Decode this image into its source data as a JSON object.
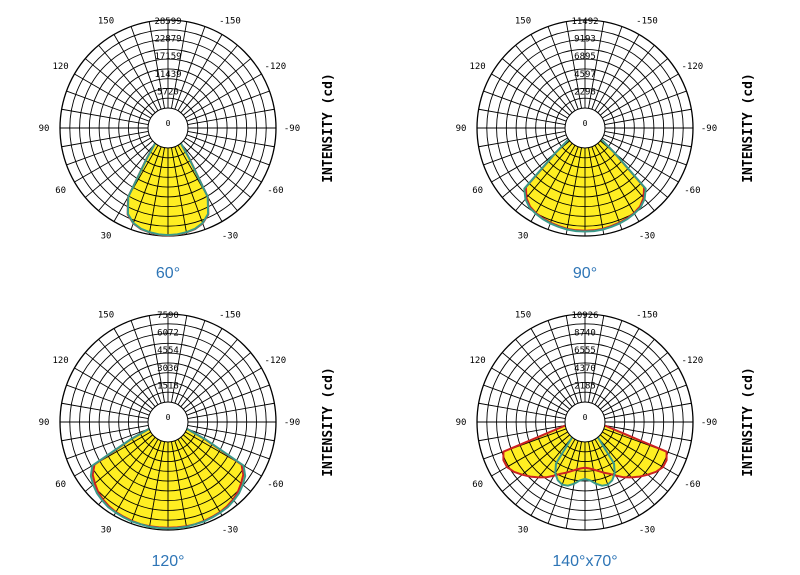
{
  "colors": {
    "fill": "#ffee22",
    "curve_c0": "#cc2222",
    "curve_c90": "#3a9a8a",
    "caption": "#2e75b6"
  },
  "chart_data": [
    {
      "type": "polar",
      "title": "60°",
      "ylabel": "INTENSITY (cd)",
      "center_label": "0",
      "rings": [
        "5720",
        "11439",
        "17159",
        "22879",
        "28599"
      ],
      "r_max": 28599,
      "angle_labels": [
        "-150",
        "150",
        "-120",
        "120",
        "-90",
        "90",
        "-60",
        "60",
        "-30",
        "30"
      ],
      "series": [
        {
          "color": "#cc2222",
          "angles": [
            -40,
            -35,
            -30,
            -25,
            -20,
            -15,
            -10,
            -5,
            0,
            5,
            10,
            15,
            20,
            25,
            30,
            35,
            40
          ],
          "values": [
            0,
            5500,
            19500,
            24500,
            26500,
            27500,
            28000,
            28300,
            28400,
            28300,
            28000,
            27500,
            26500,
            24500,
            19500,
            5500,
            0
          ]
        },
        {
          "color": "#3a9a8a",
          "angles": [
            -40,
            -35,
            -30,
            -25,
            -20,
            -15,
            -10,
            -5,
            0,
            5,
            10,
            15,
            20,
            25,
            30,
            35,
            40
          ],
          "values": [
            0,
            5300,
            19300,
            24300,
            26400,
            27400,
            27900,
            28200,
            28300,
            28200,
            27900,
            27400,
            26400,
            24300,
            19300,
            5300,
            0
          ]
        }
      ]
    },
    {
      "type": "polar",
      "title": "90°",
      "ylabel": "INTENSITY (cd)",
      "center_label": "0",
      "rings": [
        "2298",
        "4597",
        "6895",
        "9193",
        "11492"
      ],
      "r_max": 11492,
      "angle_labels": [
        "-150",
        "150",
        "-120",
        "120",
        "-90",
        "90",
        "-60",
        "60",
        "-30",
        "30"
      ],
      "series": [
        {
          "color": "#cc2222",
          "angles": [
            -55,
            -50,
            -45,
            -40,
            -35,
            -30,
            -25,
            -20,
            -15,
            -10,
            -5,
            0,
            5,
            10,
            15,
            20,
            25,
            30,
            35,
            40,
            45,
            50,
            55
          ],
          "values": [
            0,
            2300,
            8300,
            9300,
            9900,
            10200,
            10400,
            10550,
            10650,
            10750,
            10800,
            10800,
            10800,
            10750,
            10650,
            10550,
            10400,
            10200,
            9900,
            9300,
            8300,
            2300,
            0
          ]
        },
        {
          "color": "#3a9a8a",
          "angles": [
            -55,
            -50,
            -45,
            -40,
            -35,
            -30,
            -25,
            -20,
            -15,
            -10,
            -5,
            0,
            5,
            10,
            15,
            20,
            25,
            30,
            35,
            40,
            45,
            50,
            55
          ],
          "values": [
            0,
            2400,
            8600,
            9500,
            10050,
            10300,
            10500,
            10650,
            10750,
            10850,
            10900,
            10900,
            10900,
            10850,
            10750,
            10650,
            10500,
            10300,
            10050,
            9500,
            8600,
            2400,
            0
          ]
        }
      ]
    },
    {
      "type": "polar",
      "title": "120°",
      "ylabel": "INTENSITY (cd)",
      "center_label": "0",
      "rings": [
        "1518",
        "3036",
        "4554",
        "6072",
        "7590"
      ],
      "r_max": 7590,
      "angle_labels": [
        "-150",
        "150",
        "-120",
        "120",
        "-90",
        "90",
        "-60",
        "60",
        "-30",
        "30"
      ],
      "series": [
        {
          "color": "#cc2222",
          "angles": [
            -70,
            -65,
            -60,
            -55,
            -50,
            -45,
            -40,
            -35,
            -30,
            -25,
            -20,
            -15,
            -10,
            -5,
            0,
            5,
            10,
            15,
            20,
            25,
            30,
            35,
            40,
            45,
            50,
            55,
            60,
            65,
            70
          ],
          "values": [
            0,
            1800,
            5600,
            6200,
            6500,
            6800,
            7000,
            7150,
            7250,
            7300,
            7350,
            7400,
            7400,
            7400,
            7400,
            7400,
            7400,
            7400,
            7350,
            7300,
            7250,
            7150,
            7000,
            6800,
            6500,
            6200,
            5600,
            1800,
            0
          ]
        },
        {
          "color": "#3a9a8a",
          "angles": [
            -70,
            -65,
            -60,
            -55,
            -50,
            -45,
            -40,
            -35,
            -30,
            -25,
            -20,
            -15,
            -10,
            -5,
            0,
            5,
            10,
            15,
            20,
            25,
            30,
            35,
            40,
            45,
            50,
            55,
            60,
            65,
            70
          ],
          "values": [
            0,
            1900,
            5800,
            6400,
            6700,
            6950,
            7100,
            7250,
            7300,
            7350,
            7400,
            7400,
            7450,
            7450,
            7450,
            7450,
            7450,
            7400,
            7400,
            7350,
            7300,
            7250,
            7100,
            6950,
            6700,
            6400,
            5800,
            1900,
            0
          ]
        }
      ]
    },
    {
      "type": "polar",
      "title": "140°x70°",
      "ylabel": "INTENSITY (cd)",
      "center_label": "0",
      "rings": [
        "2185",
        "4370",
        "6555",
        "8740",
        "10926"
      ],
      "r_max": 10926,
      "angle_labels": [
        "-150",
        "150",
        "-120",
        "120",
        "-90",
        "90",
        "-60",
        "60",
        "-30",
        "30"
      ],
      "series": [
        {
          "color": "#cc2222",
          "angles": [
            -80,
            -75,
            -70,
            -65,
            -60,
            -55,
            -50,
            -45,
            -40,
            -35,
            -30,
            -25,
            -20,
            -15,
            -10,
            -5,
            0,
            5,
            10,
            15,
            20,
            25,
            30,
            35,
            40,
            45,
            50,
            55,
            60,
            65,
            70,
            75,
            80
          ],
          "values": [
            0,
            1500,
            8300,
            8700,
            8700,
            8300,
            7700,
            7100,
            6500,
            5900,
            5200,
            4600,
            4200,
            3800,
            3500,
            3300,
            3200,
            3300,
            3500,
            3800,
            4200,
            4600,
            5200,
            5900,
            6500,
            7100,
            7700,
            8300,
            8700,
            8700,
            8300,
            1500,
            0
          ]
        },
        {
          "color": "#3a9a8a",
          "angles": [
            -40,
            -35,
            -30,
            -25,
            -20,
            -15,
            -10,
            -5,
            0,
            5,
            10,
            15,
            20,
            25,
            30,
            35,
            40
          ],
          "values": [
            0,
            3800,
            4900,
            5500,
            5800,
            5700,
            5300,
            4800,
            4600,
            4800,
            5300,
            5700,
            5800,
            5500,
            4900,
            3800,
            0
          ]
        }
      ]
    }
  ]
}
